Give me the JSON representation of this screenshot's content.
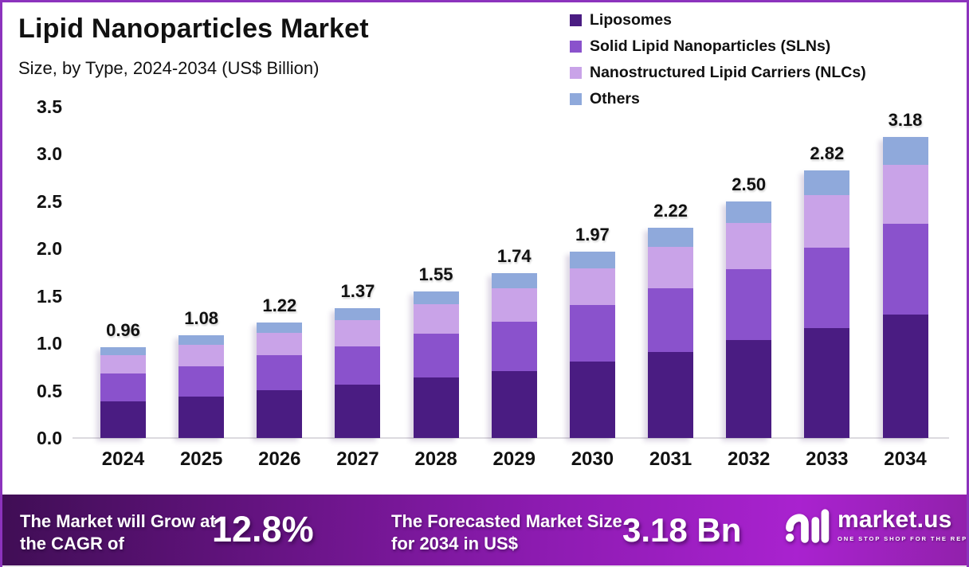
{
  "header": {
    "title": "Lipid Nanoparticles Market",
    "subtitle": "Size, by Type, 2024-2034 (US$ Billion)"
  },
  "chart_data": {
    "type": "bar",
    "stacked": true,
    "title": "Lipid Nanoparticles Market",
    "subtitle": "Size, by Type, 2024-2034 (US$ Billion)",
    "xlabel": "",
    "ylabel": "",
    "ylim": [
      0,
      3.5
    ],
    "ytick_step": 0.5,
    "yticks": [
      "0.0",
      "0.5",
      "1.0",
      "1.5",
      "2.0",
      "2.5",
      "3.0",
      "3.5"
    ],
    "grid": false,
    "legend_position": "top-right",
    "categories": [
      "2024",
      "2025",
      "2026",
      "2027",
      "2028",
      "2029",
      "2030",
      "2031",
      "2032",
      "2033",
      "2034"
    ],
    "series": [
      {
        "name": "Liposomes",
        "color": "#4A1C82",
        "values": [
          0.39,
          0.44,
          0.5,
          0.56,
          0.64,
          0.71,
          0.81,
          0.91,
          1.03,
          1.16,
          1.3
        ]
      },
      {
        "name": "Solid Lipid Nanoparticles (SLNs)",
        "color": "#8A52CC",
        "values": [
          0.29,
          0.32,
          0.37,
          0.41,
          0.46,
          0.52,
          0.59,
          0.67,
          0.75,
          0.85,
          0.96
        ]
      },
      {
        "name": "Nanostructured Lipid Carriers (NLCs)",
        "color": "#C9A3E8",
        "values": [
          0.19,
          0.22,
          0.24,
          0.27,
          0.31,
          0.35,
          0.39,
          0.44,
          0.49,
          0.55,
          0.62
        ]
      },
      {
        "name": "Others",
        "color": "#8FA9DB",
        "values": [
          0.09,
          0.1,
          0.11,
          0.13,
          0.14,
          0.16,
          0.18,
          0.2,
          0.23,
          0.26,
          0.3
        ]
      }
    ],
    "totals": [
      0.96,
      1.08,
      1.22,
      1.37,
      1.55,
      1.74,
      1.97,
      2.22,
      2.5,
      2.82,
      3.18
    ],
    "totals_labels": [
      "0.96",
      "1.08",
      "1.22",
      "1.37",
      "1.55",
      "1.74",
      "1.97",
      "2.22",
      "2.50",
      "2.82",
      "3.18"
    ]
  },
  "footer": {
    "cagr_label": "The Market will Grow at the CAGR of",
    "cagr_value": "12.8%",
    "forecast_label": "The Forecasted Market Size for 2034 in US$",
    "forecast_value": "3.18 Bn",
    "brand": {
      "name": "market.us",
      "tagline": "ONE STOP SHOP FOR THE REPORTS"
    }
  }
}
